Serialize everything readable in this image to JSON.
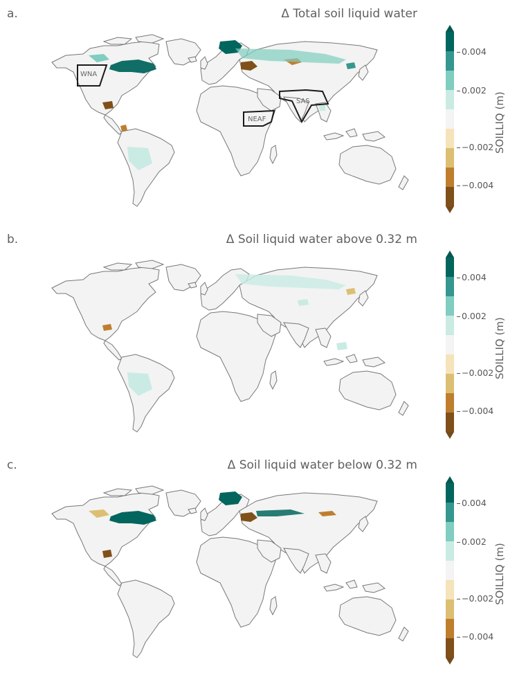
{
  "colormap": {
    "name": "BrBG",
    "levels": [
      "#80501a",
      "#be7e2e",
      "#dcbf72",
      "#f5e3b9",
      "#f4f4f4",
      "#c9ebe3",
      "#80cdc1",
      "#35978f",
      "#03665e"
    ],
    "under_color": "#744b1c",
    "over_color": "#06584f",
    "land_color": "#f2f3f2",
    "coast_color": "#777777"
  },
  "colorbar": {
    "label": "SOILLIQ (m)",
    "tick_labels": [
      "0.004",
      "0.002",
      "−0.002",
      "−0.004"
    ],
    "extend": "both"
  },
  "panels": [
    {
      "letter": "a.",
      "title": "Δ Total soil liquid water",
      "regions": [
        "WNA",
        "SAS",
        "NEAF"
      ]
    },
    {
      "letter": "b.",
      "title": "Δ Soil liquid water above 0.32 m",
      "regions": []
    },
    {
      "letter": "c.",
      "title": "Δ Soil liquid water below 0.32 m",
      "regions": []
    }
  ]
}
